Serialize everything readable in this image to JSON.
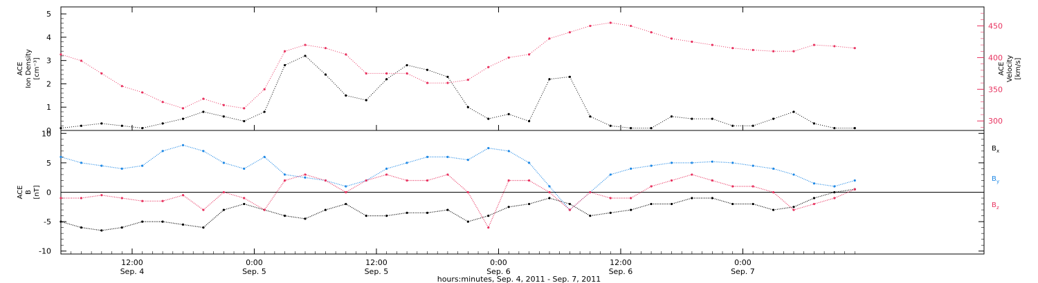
{
  "chart_data": [
    {
      "type": "scatter",
      "panel": "top",
      "ylabel_left": [
        "ACE",
        "Ion Density",
        "[cm⁻³]"
      ],
      "ylabel_right": [
        "ACE",
        "Velocity",
        "[km/s]"
      ],
      "ylim_left": [
        0,
        5.3
      ],
      "ylim_right": [
        285,
        480
      ],
      "yticks_left": [
        0,
        1,
        2,
        3,
        4,
        5
      ],
      "yticks_right": [
        300,
        350,
        400,
        450
      ],
      "x_range_hours": [
        0,
        78
      ],
      "series": [
        {
          "axis": "left",
          "color": "#000000",
          "x": [
            0,
            2,
            4,
            6,
            8,
            10,
            12,
            14,
            16,
            18,
            20,
            22,
            24,
            26,
            28,
            30,
            32,
            34,
            36,
            38,
            40,
            42,
            44,
            46,
            48,
            50,
            52,
            54,
            56,
            58,
            60,
            62,
            64,
            66,
            68,
            70,
            72,
            74,
            76,
            78
          ],
          "y": [
            0.1,
            0.2,
            0.3,
            0.2,
            0.1,
            0.3,
            0.5,
            0.8,
            0.6,
            0.4,
            0.8,
            2.8,
            3.2,
            2.4,
            1.5,
            1.3,
            2.2,
            2.8,
            2.6,
            2.3,
            1.0,
            0.5,
            0.7,
            0.4,
            2.2,
            2.3,
            0.6,
            0.2,
            0.1,
            0.1,
            0.6,
            0.5,
            0.5,
            0.2,
            0.2,
            0.5,
            0.8,
            0.3,
            0.1,
            0.1
          ]
        },
        {
          "axis": "right",
          "color": "#e8325f",
          "x": [
            0,
            2,
            4,
            6,
            8,
            10,
            12,
            14,
            16,
            18,
            20,
            22,
            24,
            26,
            28,
            30,
            32,
            34,
            36,
            38,
            40,
            42,
            44,
            46,
            48,
            50,
            52,
            54,
            56,
            58,
            60,
            62,
            64,
            66,
            68,
            70,
            72,
            74,
            76,
            78
          ],
          "y": [
            405,
            395,
            375,
            355,
            345,
            330,
            320,
            335,
            325,
            320,
            350,
            410,
            420,
            415,
            405,
            375,
            375,
            375,
            360,
            360,
            365,
            385,
            400,
            405,
            430,
            440,
            450,
            455,
            450,
            440,
            430,
            425,
            420,
            415,
            412,
            410,
            410,
            420,
            418,
            415
          ]
        }
      ]
    },
    {
      "type": "scatter",
      "panel": "bottom",
      "ylabel_left": [
        "ACE",
        "B",
        "[nT]"
      ],
      "ylim": [
        -10.5,
        10.5
      ],
      "yticks": [
        -10,
        -5,
        0,
        5,
        10
      ],
      "x_range_hours": [
        0,
        78
      ],
      "legend": [
        "B",
        "B",
        "B"
      ],
      "legend_sub": [
        "x",
        "y",
        "z"
      ],
      "series": [
        {
          "name_index": 0,
          "color": "#000000",
          "x": [
            0,
            2,
            4,
            6,
            8,
            10,
            12,
            14,
            16,
            18,
            20,
            22,
            24,
            26,
            28,
            30,
            32,
            34,
            36,
            38,
            40,
            42,
            44,
            46,
            48,
            50,
            52,
            54,
            56,
            58,
            60,
            62,
            64,
            66,
            68,
            70,
            72,
            74,
            76,
            78
          ],
          "y": [
            -5,
            -6,
            -6.5,
            -6,
            -5,
            -5,
            -5.5,
            -6,
            -3,
            -2,
            -3,
            -4,
            -4.5,
            -3,
            -2,
            -4,
            -4,
            -3.5,
            -3.5,
            -3,
            -5,
            -4,
            -2.5,
            -2,
            -1,
            -2,
            -4,
            -3.5,
            -3,
            -2,
            -2,
            -1,
            -1,
            -2,
            -2,
            -3,
            -2.5,
            -1,
            0,
            0.5
          ]
        },
        {
          "name_index": 1,
          "color": "#1e88e5",
          "x": [
            0,
            2,
            4,
            6,
            8,
            10,
            12,
            14,
            16,
            18,
            20,
            22,
            24,
            26,
            28,
            30,
            32,
            34,
            36,
            38,
            40,
            42,
            44,
            46,
            48,
            50,
            52,
            54,
            56,
            58,
            60,
            62,
            64,
            66,
            68,
            70,
            72,
            74,
            76,
            78
          ],
          "y": [
            6,
            5,
            4.5,
            4,
            4.5,
            7,
            8,
            7,
            5,
            4,
            6,
            3,
            2.5,
            2,
            1,
            2,
            4,
            5,
            6,
            6,
            5.5,
            7.5,
            7,
            5,
            1,
            -3,
            0,
            3,
            4,
            4.5,
            5,
            5,
            5.2,
            5,
            4.5,
            4,
            3,
            1.5,
            1,
            2
          ]
        },
        {
          "name_index": 2,
          "color": "#e8325f",
          "x": [
            0,
            2,
            4,
            6,
            8,
            10,
            12,
            14,
            16,
            18,
            20,
            22,
            24,
            26,
            28,
            30,
            32,
            34,
            36,
            38,
            40,
            42,
            44,
            46,
            48,
            50,
            52,
            54,
            56,
            58,
            60,
            62,
            64,
            66,
            68,
            70,
            72,
            74,
            76,
            78
          ],
          "y": [
            -1,
            -1,
            -0.5,
            -1,
            -1.5,
            -1.5,
            -0.5,
            -3,
            0,
            -1,
            -3,
            2,
            3,
            2,
            0,
            2,
            3,
            2,
            2,
            3,
            0,
            -6,
            2,
            2,
            0,
            -3,
            0,
            -1,
            -1,
            1,
            2,
            3,
            2,
            1,
            1,
            0,
            -3,
            -2,
            -1,
            0.5
          ]
        }
      ]
    }
  ],
  "x_axis": {
    "ticks": [
      {
        "hour": 0,
        "time": "",
        "date": ""
      },
      {
        "hour": 7,
        "time": "12:00",
        "date": "Sep. 4"
      },
      {
        "hour": 19,
        "time": "0:00",
        "date": "Sep. 5"
      },
      {
        "hour": 31,
        "time": "12:00",
        "date": "Sep. 5"
      },
      {
        "hour": 43,
        "time": "0:00",
        "date": "Sep. 6"
      },
      {
        "hour": 55,
        "time": "12:00",
        "date": "Sep. 6"
      },
      {
        "hour": 67,
        "time": "0:00",
        "date": "Sep. 7"
      }
    ],
    "label": "hours:minutes, Sep.  4, 2011 - Sep.  7, 2011"
  }
}
